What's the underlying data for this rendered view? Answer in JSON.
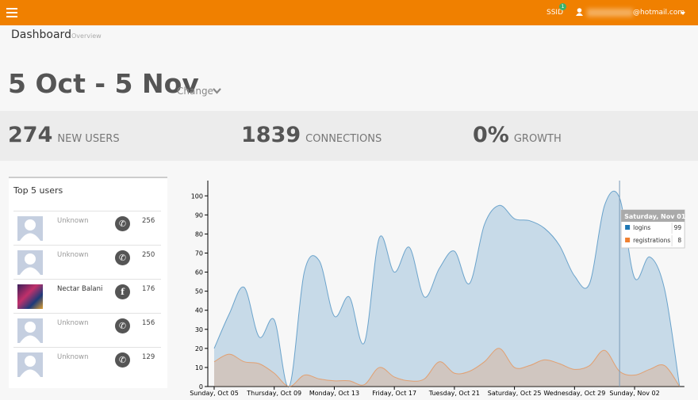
{
  "header": {
    "ssid": "SSID",
    "badge": "1",
    "email": "@hotmail.com"
  },
  "page": {
    "title": "Dashboard",
    "subtitle": "Overview"
  },
  "range": {
    "label": "5 Oct - 5 Nov",
    "change": "Change"
  },
  "stats": [
    {
      "value": "274",
      "label": "NEW USERS"
    },
    {
      "value": "1839",
      "label": "CONNECTIONS"
    },
    {
      "value": "0%",
      "label": "GROWTH"
    }
  ],
  "top_users": {
    "title": "Top 5 users",
    "rows": [
      {
        "name": "Unknown",
        "count": "256"
      },
      {
        "name": "Unknown",
        "count": "250"
      },
      {
        "name": "Nectar Balani",
        "count": "176"
      },
      {
        "name": "Unknown",
        "count": "156"
      },
      {
        "name": "Unknown",
        "count": "129"
      }
    ]
  },
  "chart_data": {
    "type": "area",
    "categories": [
      "Sunday, Oct 05",
      null,
      null,
      null,
      "Thursday, Oct 09",
      null,
      null,
      null,
      "Monday, Oct 13",
      null,
      null,
      null,
      "Friday, Oct 17",
      null,
      null,
      null,
      "Tuesday, Oct 21",
      null,
      null,
      null,
      "Saturday, Oct 25",
      null,
      null,
      null,
      "Wednesday, Oct 29",
      null,
      null,
      null,
      "Sunday, Nov 02",
      null,
      null,
      null
    ],
    "series": [
      {
        "name": "logins",
        "color": "#1f77b4",
        "values": [
          20,
          38,
          52,
          26,
          35,
          0,
          60,
          66,
          37,
          47,
          23,
          78,
          60,
          73,
          47,
          62,
          71,
          54,
          85,
          95,
          88,
          87,
          83,
          74,
          58,
          54,
          95,
          99,
          57,
          68,
          51,
          0
        ]
      },
      {
        "name": "registrations",
        "color": "#f08030",
        "values": [
          13,
          17,
          13,
          12,
          7,
          0,
          6,
          4,
          3,
          3,
          1,
          10,
          5,
          3,
          4,
          13,
          7,
          8,
          13,
          20,
          10,
          11,
          14,
          12,
          9,
          11,
          19,
          8,
          6,
          9,
          11,
          0
        ]
      }
    ],
    "ylim": [
      0,
      108
    ],
    "yticks": [
      0,
      10,
      20,
      30,
      40,
      50,
      60,
      70,
      80,
      90,
      100
    ],
    "tooltip": {
      "title": "Saturday, Nov 01"
    }
  }
}
